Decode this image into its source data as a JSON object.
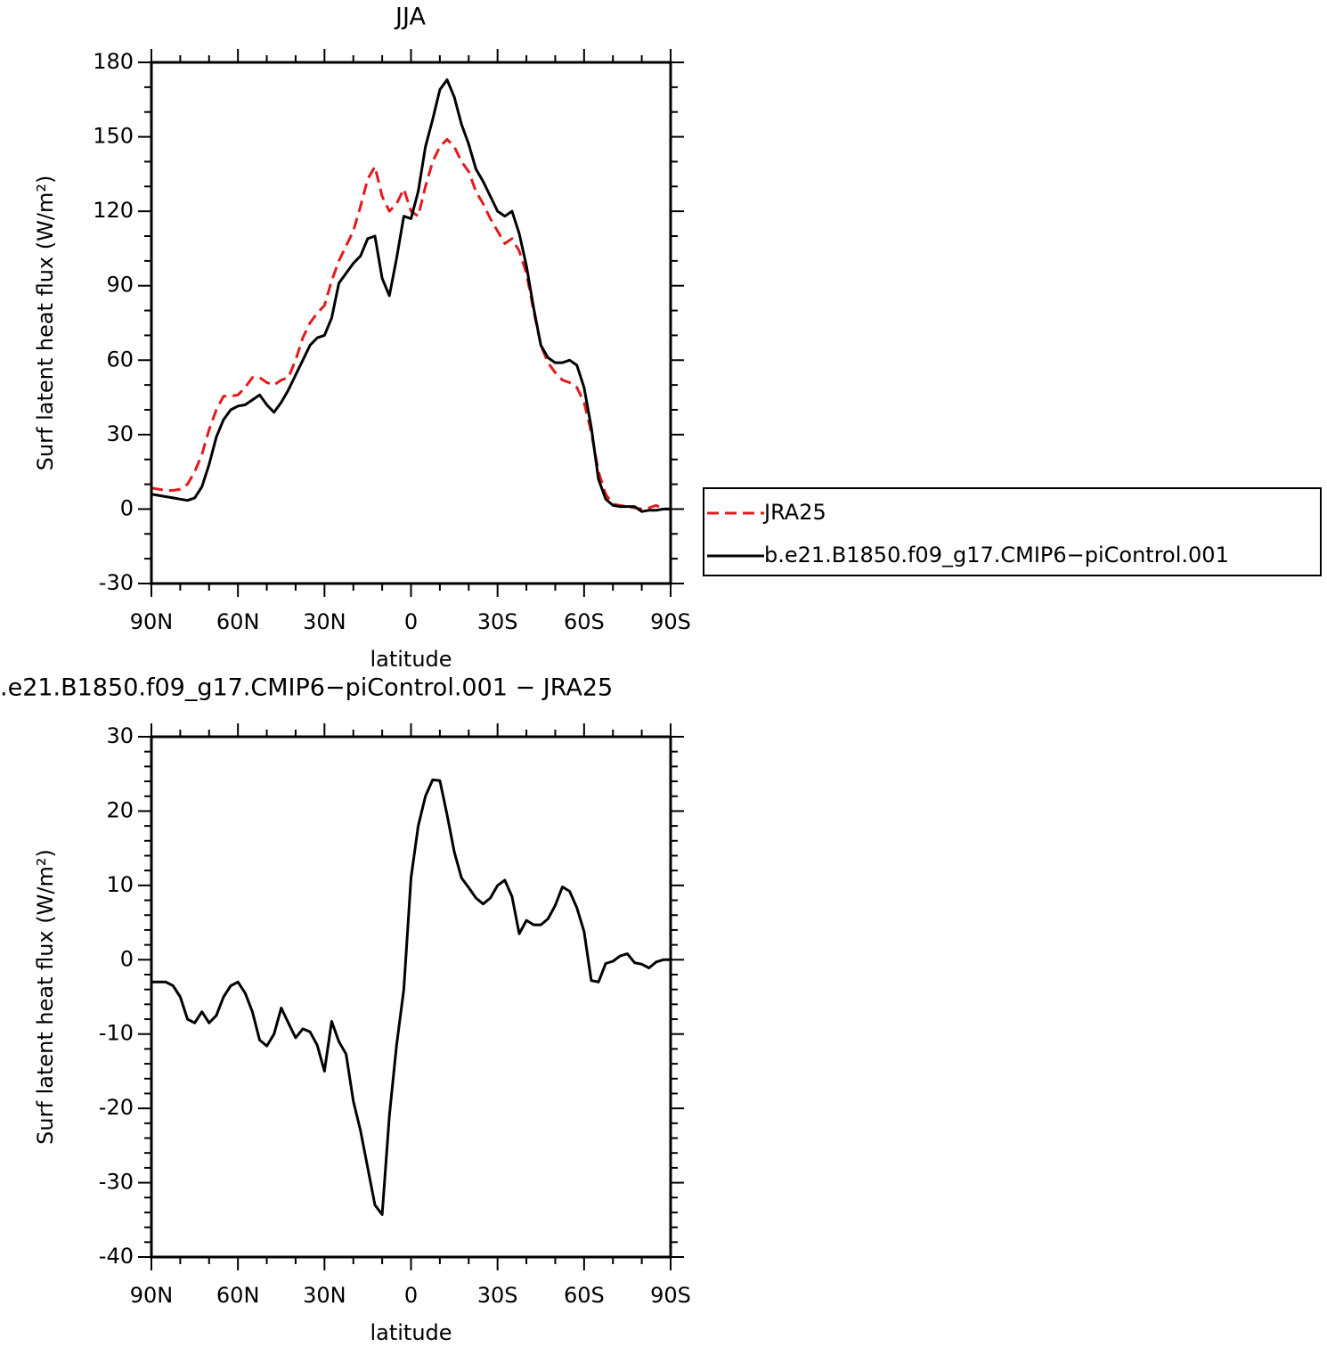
{
  "chart_data": [
    {
      "type": "line",
      "title": "JJA",
      "xlabel": "latitude",
      "ylabel": "Surf latent heat flux (W/m²)",
      "x": [
        90,
        87.5,
        85,
        82.5,
        80,
        77.5,
        75,
        72.5,
        70,
        67.5,
        65,
        62.5,
        60,
        57.5,
        55,
        52.5,
        50,
        47.5,
        45,
        42.5,
        40,
        37.5,
        35,
        32.5,
        30,
        27.5,
        25,
        22.5,
        20,
        17.5,
        15,
        12.5,
        10,
        7.5,
        5,
        2.5,
        0,
        -2.5,
        -5,
        -7.5,
        -10,
        -12.5,
        -15,
        -17.5,
        -20,
        -22.5,
        -25,
        -27.5,
        -30,
        -32.5,
        -35,
        -37.5,
        -40,
        -42.5,
        -45,
        -47.5,
        -50,
        -52.5,
        -55,
        -57.5,
        -60,
        -62.5,
        -65,
        -67.5,
        -70,
        -72.5,
        -75,
        -77.5,
        -80,
        -82.5,
        -85,
        -87.5,
        -90
      ],
      "series": [
        {
          "name": "JRA25",
          "color": "#e41a1c",
          "dash": true,
          "values": [
            8.5,
            8,
            7.5,
            7.5,
            8,
            10,
            15,
            22,
            32,
            40,
            45.5,
            45.5,
            46,
            49,
            53,
            53,
            51,
            50,
            52,
            53,
            60,
            69,
            75,
            79,
            82,
            92,
            100,
            106,
            112,
            122,
            133,
            138,
            126,
            120,
            123,
            129,
            120,
            118,
            130,
            140,
            146,
            149,
            146,
            140,
            136,
            128,
            123,
            117,
            112,
            107,
            109,
            104,
            95,
            80,
            66,
            59,
            55,
            52,
            51,
            49,
            43,
            31,
            15,
            6,
            2,
            1.5,
            1,
            0.5,
            0,
            0.5,
            1.5,
            0,
            0
          ]
        },
        {
          "name": "b.e21.B1850.f09_g17.CMIP6−piControl.001",
          "color": "#000000",
          "dash": false,
          "values": [
            6,
            5.5,
            5,
            4.5,
            4,
            3.5,
            4.5,
            9,
            18,
            29,
            36,
            40,
            41.5,
            42,
            44,
            46,
            42,
            39,
            43,
            48,
            54,
            60,
            66,
            69,
            70,
            77,
            91,
            95,
            99,
            102,
            109,
            110,
            93,
            86,
            101,
            118,
            117,
            128,
            146,
            157,
            169,
            173,
            166,
            155,
            147,
            137,
            132,
            126,
            120,
            118,
            120,
            111,
            98,
            81,
            66,
            61,
            59,
            59,
            60,
            58,
            49,
            33,
            12,
            4,
            1.5,
            1,
            1,
            1,
            -1,
            -0.5,
            -0.5,
            0,
            0
          ]
        }
      ],
      "xlim": [
        90,
        -90
      ],
      "xticks": [
        {
          "value": 90,
          "label": "90N"
        },
        {
          "value": 60,
          "label": "60N"
        },
        {
          "value": 30,
          "label": "30N"
        },
        0,
        {
          "value": -30,
          "label": "30S"
        },
        {
          "value": -60,
          "label": "60S"
        },
        {
          "value": -90,
          "label": "90S"
        }
      ],
      "ylim": [
        -30,
        180
      ],
      "yticks": [
        -30,
        0,
        30,
        60,
        90,
        120,
        150,
        180
      ],
      "legend": "right"
    },
    {
      "type": "line",
      "title": ".e21.B1850.f09_g17.CMIP6−piControl.001 − JRA25",
      "xlabel": "latitude",
      "ylabel": "Surf latent heat flux (W/m²)",
      "x": [
        90,
        87.5,
        85,
        82.5,
        80,
        77.5,
        75,
        72.5,
        70,
        67.5,
        65,
        62.5,
        60,
        57.5,
        55,
        52.5,
        50,
        47.5,
        45,
        42.5,
        40,
        37.5,
        35,
        32.5,
        30,
        27.5,
        25,
        22.5,
        20,
        17.5,
        15,
        12.5,
        10,
        7.5,
        5,
        2.5,
        0,
        -2.5,
        -5,
        -7.5,
        -10,
        -12.5,
        -15,
        -17.5,
        -20,
        -22.5,
        -25,
        -27.5,
        -30,
        -32.5,
        -35,
        -37.5,
        -40,
        -42.5,
        -45,
        -47.5,
        -50,
        -52.5,
        -55,
        -57.5,
        -60,
        -62.5,
        -65,
        -67.5,
        -70,
        -72.5,
        -75,
        -77.5,
        -80,
        -82.5,
        -85,
        -87.5,
        -90
      ],
      "color": "#000000",
      "values": [
        -3,
        -3,
        -3,
        -3.5,
        -5,
        -8,
        -8.5,
        -7,
        -8.5,
        -7.5,
        -5,
        -3.5,
        -3,
        -4.5,
        -7,
        -10.8,
        -11.6,
        -10,
        -6.5,
        -8.5,
        -10.5,
        -9.3,
        -9.7,
        -11.5,
        -15,
        -8.3,
        -11,
        -12.7,
        -19,
        -23,
        -28,
        -33,
        -34.3,
        -21,
        -11.5,
        -4,
        11,
        18,
        22,
        24.2,
        24.1,
        19.5,
        14.5,
        11,
        9.7,
        8.3,
        7.5,
        8.3,
        10,
        10.7,
        8.5,
        3.5,
        5.3,
        4.7,
        4.7,
        5.5,
        7.3,
        9.8,
        9.2,
        7,
        3.8,
        -2.8,
        -3,
        -0.5,
        -0.2,
        0.5,
        0.8,
        -0.4,
        -0.6,
        -1.1,
        -0.3,
        0,
        0
      ],
      "xlim": [
        90,
        -90
      ],
      "xticks": [
        {
          "value": 90,
          "label": "90N"
        },
        {
          "value": 60,
          "label": "60N"
        },
        {
          "value": 30,
          "label": "30N"
        },
        0,
        {
          "value": -30,
          "label": "30S"
        },
        {
          "value": -60,
          "label": "60S"
        },
        {
          "value": -90,
          "label": "90S"
        }
      ],
      "ylim": [
        -40,
        30
      ],
      "yticks": [
        -40,
        -30,
        -20,
        -10,
        0,
        10,
        20,
        30
      ]
    }
  ]
}
